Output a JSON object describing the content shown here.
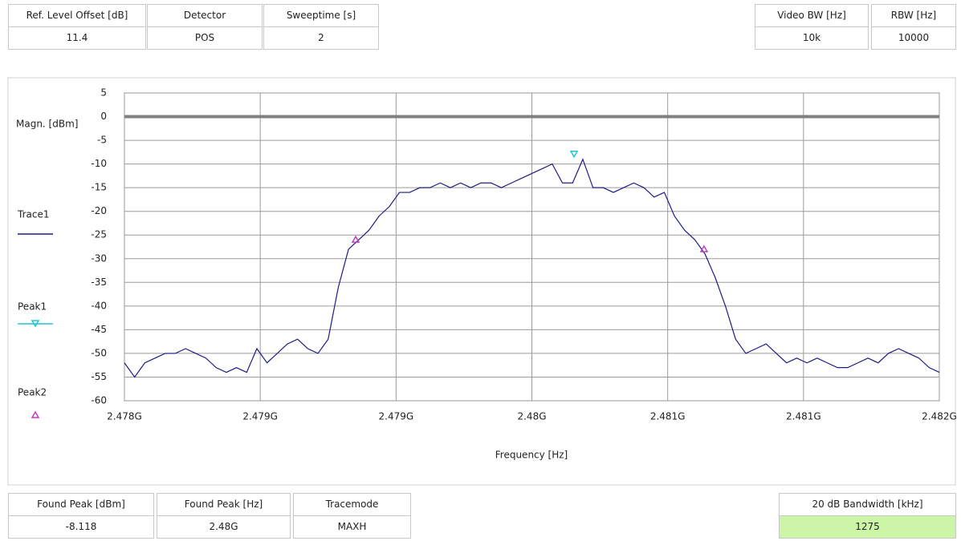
{
  "top_fields": [
    {
      "label": "Ref. Level Offset [dB]",
      "value": "11.4"
    },
    {
      "label": "Detector",
      "value": "POS"
    },
    {
      "label": "Sweeptime [s]",
      "value": "2"
    },
    {
      "label": "Video BW [Hz]",
      "value": "10k"
    },
    {
      "label": "RBW [Hz]",
      "value": "10000"
    }
  ],
  "bottom_fields": [
    {
      "label": "Found Peak [dBm]",
      "value": "-8.118"
    },
    {
      "label": "Found Peak [Hz]",
      "value": "2.48G"
    },
    {
      "label": "Tracemode",
      "value": "MAXH"
    },
    {
      "label": "20 dB Bandwidth [kHz]",
      "value": "1275"
    }
  ],
  "chart_data": {
    "type": "line",
    "y_label": "Magn. [dBm]",
    "x_label": "Frequency [Hz]",
    "xlim": [
      2478000000,
      2482000000
    ],
    "xticks": [
      {
        "value": 2478000000,
        "label": "2.478G"
      },
      {
        "value": 2478666667,
        "label": "2.479G"
      },
      {
        "value": 2479333333,
        "label": "2.479G"
      },
      {
        "value": 2480000000,
        "label": "2.48G"
      },
      {
        "value": 2480666667,
        "label": "2.481G"
      },
      {
        "value": 2481333333,
        "label": "2.481G"
      },
      {
        "value": 2482000000,
        "label": "2.482G"
      }
    ],
    "ylim": [
      -60,
      5
    ],
    "yticks": [
      5,
      0,
      -5,
      -10,
      -15,
      -20,
      -25,
      -30,
      -35,
      -40,
      -45,
      -50,
      -55,
      -60
    ],
    "grid": true,
    "hline": 0,
    "series": [
      {
        "name": "Trace1",
        "color": "#1c1c84",
        "x": [
          2478000000,
          2478050000,
          2478100000,
          2478150000,
          2478200000,
          2478250000,
          2478300000,
          2478350000,
          2478400000,
          2478450000,
          2478500000,
          2478550000,
          2478600000,
          2478650000,
          2478700000,
          2478750000,
          2478800000,
          2478850000,
          2478900000,
          2478950000,
          2479000000,
          2479050000,
          2479100000,
          2479150000,
          2479200000,
          2479250000,
          2479300000,
          2479350000,
          2479400000,
          2479450000,
          2479500000,
          2479550000,
          2479600000,
          2479650000,
          2479700000,
          2479750000,
          2479800000,
          2479850000,
          2479900000,
          2479950000,
          2480000000,
          2480050000,
          2480100000,
          2480150000,
          2480200000,
          2480250000,
          2480300000,
          2480350000,
          2480400000,
          2480450000,
          2480500000,
          2480550000,
          2480600000,
          2480650000,
          2480700000,
          2480750000,
          2480800000,
          2480850000,
          2480900000,
          2480950000,
          2481000000,
          2481050000,
          2481100000,
          2481150000,
          2481200000,
          2481250000,
          2481300000,
          2481350000,
          2481400000,
          2481450000,
          2481500000,
          2481550000,
          2481600000,
          2481650000,
          2481700000,
          2481750000,
          2481800000,
          2481850000,
          2481900000,
          2481950000,
          2482000000
        ],
        "values": [
          -52,
          -55,
          -52,
          -51,
          -50,
          -50,
          -49,
          -50,
          -51,
          -53,
          -54,
          -53,
          -54,
          -49,
          -52,
          -50,
          -48,
          -47,
          -49,
          -50,
          -47,
          -36,
          -28,
          -26,
          -24,
          -21,
          -19,
          -16,
          -16,
          -15,
          -15,
          -14,
          -15,
          -14,
          -15,
          -14,
          -14,
          -15,
          -14,
          -13,
          -12,
          -11,
          -10,
          -14,
          -14,
          -9,
          -15,
          -15,
          -16,
          -15,
          -14,
          -15,
          -17,
          -16,
          -21,
          -24,
          -26,
          -29,
          -34,
          -40,
          -47,
          -50,
          -49,
          -48,
          -50,
          -52,
          -51,
          -52,
          -51,
          -52,
          -53,
          -53,
          -52,
          -51,
          -52,
          -50,
          -49,
          -50,
          -51,
          -53,
          -54
        ]
      },
      {
        "name": "Peak1",
        "color": "#22c4d4",
        "marker": "triangle-down",
        "x": [
          2480207000
        ],
        "values": [
          -8
        ]
      },
      {
        "name": "Peak2",
        "color": "#c040c0",
        "marker": "triangle-up",
        "x": [
          2479135000,
          2480845000
        ],
        "values": [
          -26,
          -28
        ]
      }
    ]
  }
}
